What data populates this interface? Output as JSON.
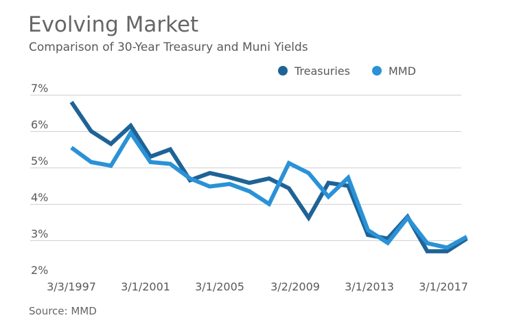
{
  "chart_data": {
    "type": "line",
    "title": "Evolving Market",
    "subtitle": "Comparison of 30-Year Treasury and Muni Yields",
    "source": "Source: MMD",
    "xlabel": "",
    "ylabel": "",
    "ylim": [
      2,
      7
    ],
    "y_ticks": [
      "7%",
      "6%",
      "5%",
      "4%",
      "3%",
      "2%"
    ],
    "x_ticks": [
      "3/3/1997",
      "3/1/2001",
      "3/1/2005",
      "3/2/2009",
      "3/1/2013",
      "3/1/2017"
    ],
    "grid": "horizontal",
    "legend_position": "top-right",
    "x": [
      1997,
      1998,
      1999,
      2000,
      2001,
      2002,
      2003,
      2004,
      2005,
      2006,
      2007,
      2008,
      2009,
      2010,
      2011,
      2012,
      2013,
      2014,
      2015,
      2016,
      2017
    ],
    "series": [
      {
        "name": "Treasuries",
        "color": "#1f6396",
        "values": [
          6.8,
          6.0,
          5.65,
          6.15,
          5.3,
          5.5,
          4.65,
          4.85,
          4.73,
          4.58,
          4.7,
          4.43,
          3.62,
          4.58,
          4.5,
          3.15,
          3.05,
          3.65,
          2.7,
          2.7,
          3.05
        ]
      },
      {
        "name": "MMD",
        "color": "#2a92d6",
        "values": [
          5.55,
          5.15,
          5.05,
          5.95,
          5.15,
          5.1,
          4.7,
          4.48,
          4.55,
          4.35,
          4.0,
          5.12,
          4.85,
          4.2,
          4.72,
          3.28,
          2.93,
          3.62,
          2.92,
          2.8,
          3.1
        ]
      }
    ]
  }
}
